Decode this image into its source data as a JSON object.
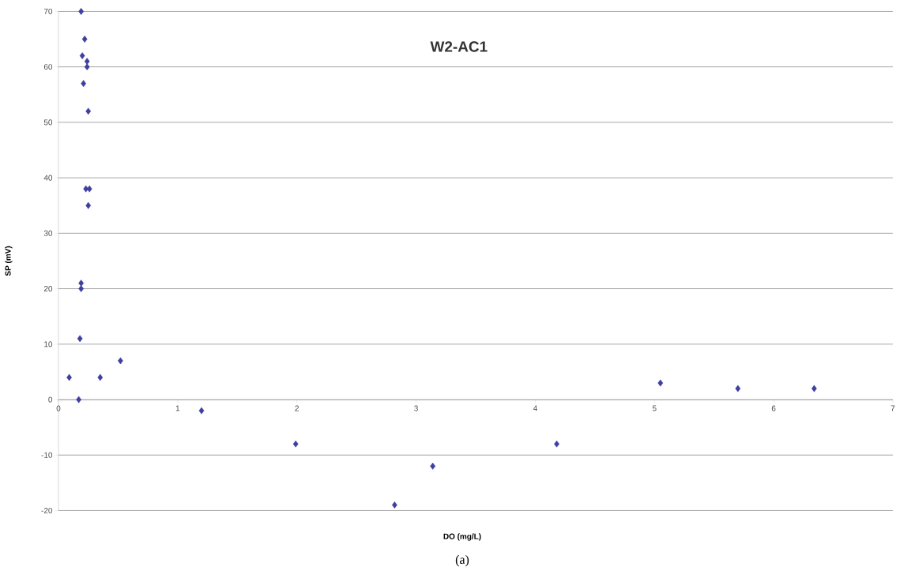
{
  "chart_data": {
    "type": "scatter",
    "title": "W2-AC1",
    "xlabel": "DO (mg/L)",
    "ylabel": "SP (mV)",
    "annotations": [
      "(a)"
    ],
    "series": [
      {
        "color": "#3f3f9f",
        "x": [
          0.09,
          0.19,
          0.19,
          0.18,
          0.17,
          0.19,
          0.22,
          0.2,
          0.24,
          0.24,
          0.21,
          0.25,
          0.23,
          0.26,
          0.25,
          0.35,
          0.52,
          1.2,
          1.99,
          2.82,
          3.14,
          4.18,
          5.05,
          5.7,
          6.34
        ],
        "values": [
          4,
          21,
          20,
          11,
          0,
          70,
          65,
          62,
          61,
          60,
          57,
          52,
          38,
          38,
          35,
          4,
          7,
          -2,
          -8,
          -19,
          -12,
          -8,
          3,
          2,
          2
        ]
      }
    ],
    "xlim": [
      0,
      7
    ],
    "ylim": [
      -20,
      70
    ],
    "xticks": [
      0,
      1,
      2,
      3,
      4,
      5,
      6,
      7
    ],
    "yticks": [
      -20,
      -10,
      0,
      10,
      20,
      30,
      40,
      50,
      60,
      70
    ],
    "grid": "y",
    "marker": "diamond"
  }
}
